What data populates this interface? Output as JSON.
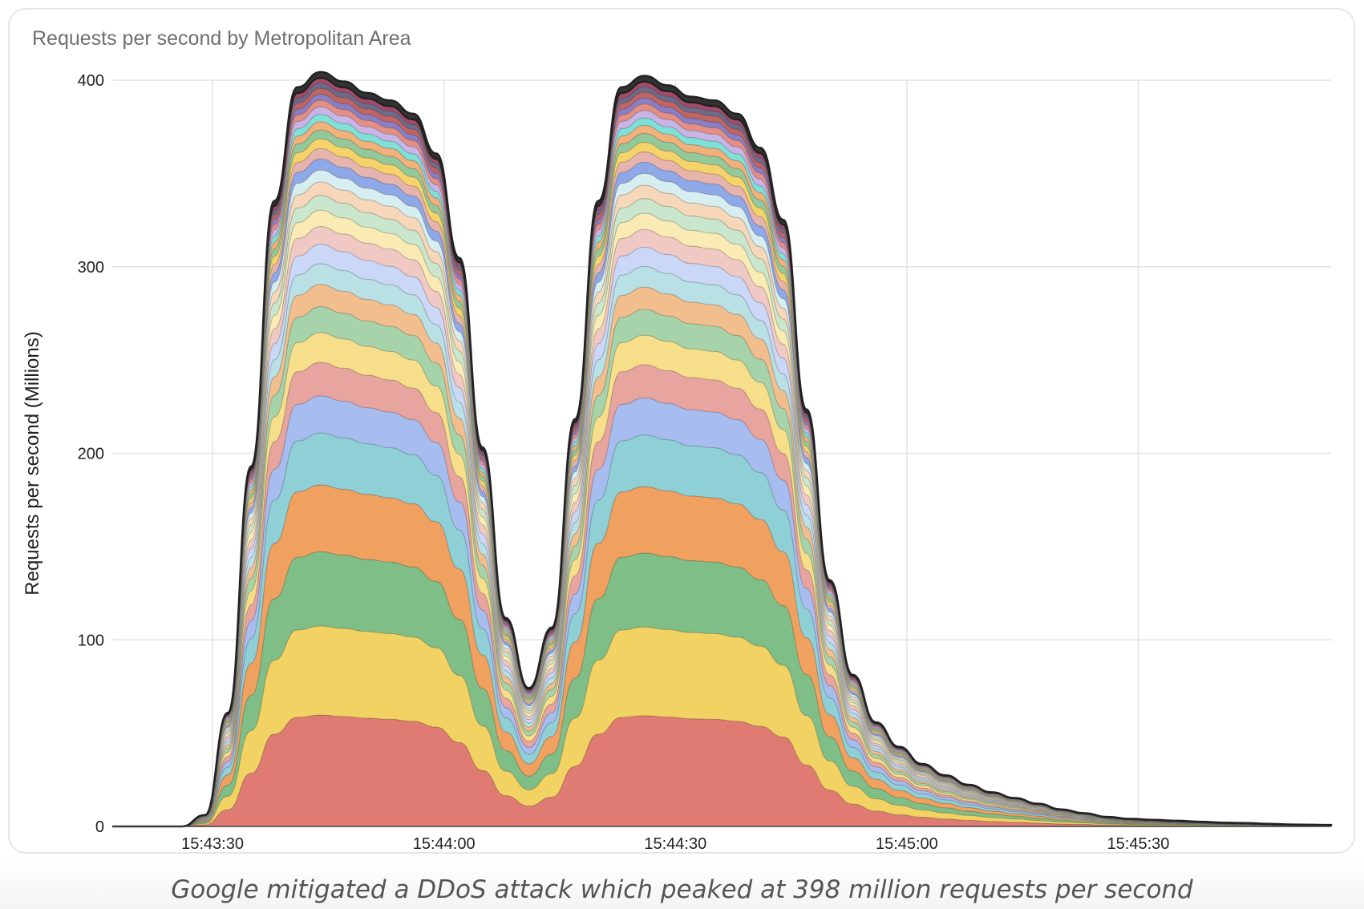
{
  "title": "Requests per second by Metropolitan Area",
  "caption": "Google mitigated a DDoS attack which peaked at 398 million requests per second",
  "chart_data": {
    "type": "area",
    "stacked": true,
    "title": "Requests per second by Metropolitan Area",
    "xlabel": "",
    "ylabel": "Requests per second (Millions)",
    "ylim": [
      0,
      400
    ],
    "yticks": [
      "0",
      "100",
      "200",
      "300",
      "400"
    ],
    "xlim": [
      "15:43:17",
      "15:45:55"
    ],
    "xticks": [
      "15:43:30",
      "15:44:00",
      "15:44:30",
      "15:45:00",
      "15:45:30"
    ],
    "grid": true,
    "legend": "none",
    "total_peak_millions": 398,
    "x": [
      "15:43:17",
      "15:43:20",
      "15:43:23",
      "15:43:26",
      "15:43:29",
      "15:43:32",
      "15:43:35",
      "15:43:38",
      "15:43:41",
      "15:43:44",
      "15:43:47",
      "15:43:50",
      "15:43:53",
      "15:43:56",
      "15:43:59",
      "15:44:02",
      "15:44:05",
      "15:44:08",
      "15:44:11",
      "15:44:14",
      "15:44:17",
      "15:44:20",
      "15:44:23",
      "15:44:26",
      "15:44:29",
      "15:44:32",
      "15:44:35",
      "15:44:38",
      "15:44:41",
      "15:44:44",
      "15:44:47",
      "15:44:50",
      "15:44:53",
      "15:44:56",
      "15:44:59",
      "15:45:02",
      "15:45:05",
      "15:45:08",
      "15:45:11",
      "15:45:14",
      "15:45:17",
      "15:45:20",
      "15:45:23",
      "15:45:26",
      "15:45:29",
      "15:45:32",
      "15:45:35",
      "15:45:38",
      "15:45:41",
      "15:45:44",
      "15:45:47",
      "15:45:50",
      "15:45:55"
    ],
    "total": [
      0,
      0,
      0,
      0,
      6,
      60,
      190,
      330,
      390,
      398,
      393,
      387,
      383,
      376,
      355,
      300,
      200,
      110,
      73,
      105,
      215,
      330,
      390,
      396,
      391,
      385,
      383,
      376,
      358,
      320,
      220,
      130,
      80,
      55,
      42,
      33,
      27,
      22,
      18,
      15,
      12,
      9,
      7,
      5,
      4,
      3.5,
      3,
      2.5,
      2,
      1.8,
      1.4,
      1,
      0.8
    ],
    "series": [
      {
        "share": 0.15,
        "color": "#df7b72"
      },
      {
        "share": 0.12,
        "color": "#f1d262"
      },
      {
        "share": 0.1,
        "color": "#7fbf87"
      },
      {
        "share": 0.09,
        "color": "#f0a05f"
      },
      {
        "share": 0.07,
        "color": "#8fcfd6"
      },
      {
        "share": 0.05,
        "color": "#a7bdf0"
      },
      {
        "share": 0.045,
        "color": "#e8a49e"
      },
      {
        "share": 0.04,
        "color": "#f6de8a"
      },
      {
        "share": 0.035,
        "color": "#a6d3a9"
      },
      {
        "share": 0.03,
        "color": "#f3be8e"
      },
      {
        "share": 0.028,
        "color": "#b9e0e4"
      },
      {
        "share": 0.026,
        "color": "#cbd7f6"
      },
      {
        "share": 0.024,
        "color": "#f1c9c4"
      },
      {
        "share": 0.022,
        "color": "#faeab3"
      },
      {
        "share": 0.02,
        "color": "#cae6cc"
      },
      {
        "share": 0.018,
        "color": "#f7d7b9"
      },
      {
        "share": 0.016,
        "color": "#d6eef0"
      },
      {
        "share": 0.015,
        "color": "#8ea8e8"
      },
      {
        "share": 0.014,
        "color": "#e7b3ad"
      },
      {
        "share": 0.013,
        "color": "#f5d36a"
      },
      {
        "share": 0.012,
        "color": "#93c99a"
      },
      {
        "share": 0.011,
        "color": "#f2b17a"
      },
      {
        "share": 0.01,
        "color": "#7fe0d8"
      },
      {
        "share": 0.01,
        "color": "#c9b4e6"
      },
      {
        "share": 0.009,
        "color": "#e48f86"
      },
      {
        "share": 0.008,
        "color": "#8a7fc4"
      },
      {
        "share": 0.008,
        "color": "#c06464"
      },
      {
        "share": 0.007,
        "color": "#6b6b8a"
      },
      {
        "share": 0.007,
        "color": "#a44a6a"
      },
      {
        "share": 0.008,
        "color": "#333333"
      }
    ]
  }
}
